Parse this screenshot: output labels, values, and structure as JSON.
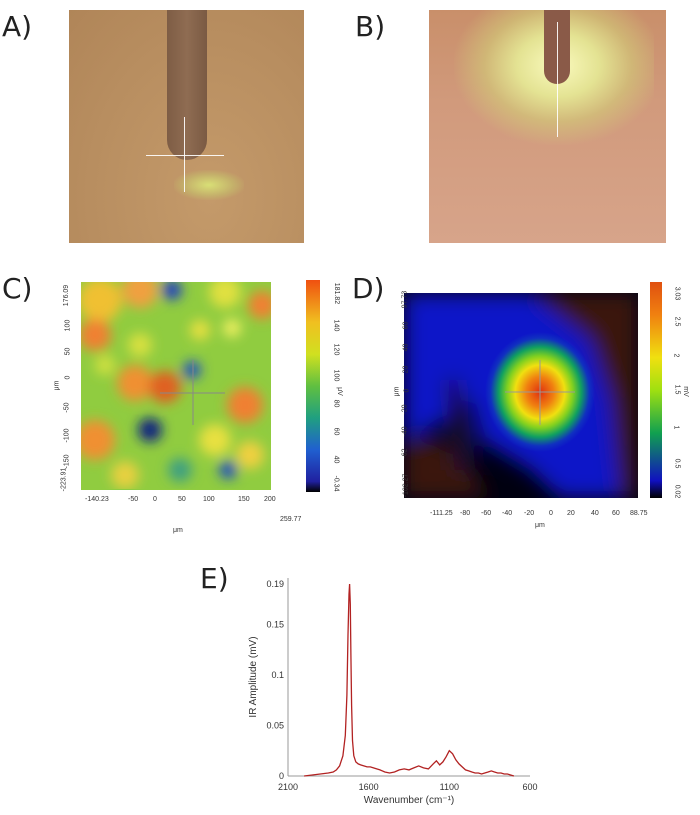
{
  "panels": {
    "A": {
      "label": "A)"
    },
    "B": {
      "label": "B)"
    },
    "C": {
      "label": "C)",
      "x_ticks": [
        "-140.23",
        "-50",
        "0",
        "50",
        "100",
        "150",
        "200",
        "259.77"
      ],
      "y_ticks": [
        "176.09",
        "100",
        "50",
        "0",
        "-50",
        "-100",
        "-150",
        "-223.91"
      ],
      "x_unit": "μm",
      "y_unit": "μm",
      "colorbar_ticks": [
        "181.82",
        "140",
        "120",
        "100",
        "80",
        "60",
        "40",
        "-0.34"
      ],
      "colorbar_unit": "μV"
    },
    "D": {
      "label": "D)",
      "x_ticks": [
        "-111.25",
        "-80",
        "-60",
        "-40",
        "-20",
        "0",
        "20",
        "40",
        "60",
        "88.75"
      ],
      "y_ticks": [
        "97.73",
        "60",
        "40",
        "20",
        "0",
        "-20",
        "-40",
        "-62",
        "-102.27"
      ],
      "x_unit": "μm",
      "y_unit": "μm",
      "colorbar_ticks": [
        "3.03",
        "2.5",
        "2",
        "1.5",
        "1",
        "0.5",
        "0.02"
      ],
      "colorbar_unit": "mV"
    },
    "E": {
      "label": "E)"
    }
  },
  "chart_data": {
    "type": "line",
    "xlabel": "Wavenumber (cm⁻¹)",
    "ylabel": "IR Amplitude (mV)",
    "xlim": [
      2100,
      600
    ],
    "ylim": [
      0,
      0.19
    ],
    "x_ticks": [
      "2100",
      "1600",
      "1100",
      "600"
    ],
    "y_ticks": [
      "0",
      "0.05",
      "0.1",
      "0.15",
      "0.19"
    ],
    "line_color": "#b22222",
    "series": [
      {
        "x": [
          2000,
          1950,
          1900,
          1850,
          1820,
          1800,
          1780,
          1760,
          1745,
          1735,
          1728,
          1722,
          1718,
          1714,
          1710,
          1706,
          1700,
          1692,
          1680,
          1665,
          1650,
          1630,
          1610,
          1590,
          1570,
          1550,
          1530,
          1500,
          1470,
          1440,
          1410,
          1380,
          1350,
          1320,
          1290,
          1260,
          1230,
          1200,
          1180,
          1160,
          1140,
          1120,
          1100,
          1080,
          1060,
          1040,
          1020,
          1000,
          980,
          960,
          940,
          920,
          900,
          880,
          860,
          840,
          820,
          800,
          780,
          760,
          740,
          720,
          700
        ],
        "y": [
          0.0,
          0.001,
          0.002,
          0.003,
          0.004,
          0.006,
          0.01,
          0.02,
          0.04,
          0.08,
          0.14,
          0.18,
          0.19,
          0.17,
          0.12,
          0.07,
          0.035,
          0.02,
          0.014,
          0.012,
          0.011,
          0.01,
          0.009,
          0.009,
          0.008,
          0.007,
          0.006,
          0.004,
          0.003,
          0.004,
          0.006,
          0.007,
          0.006,
          0.008,
          0.01,
          0.008,
          0.007,
          0.012,
          0.015,
          0.011,
          0.014,
          0.019,
          0.025,
          0.022,
          0.016,
          0.012,
          0.009,
          0.006,
          0.005,
          0.004,
          0.003,
          0.003,
          0.002,
          0.003,
          0.004,
          0.005,
          0.004,
          0.003,
          0.003,
          0.002,
          0.002,
          0.001,
          0.0
        ]
      }
    ]
  }
}
